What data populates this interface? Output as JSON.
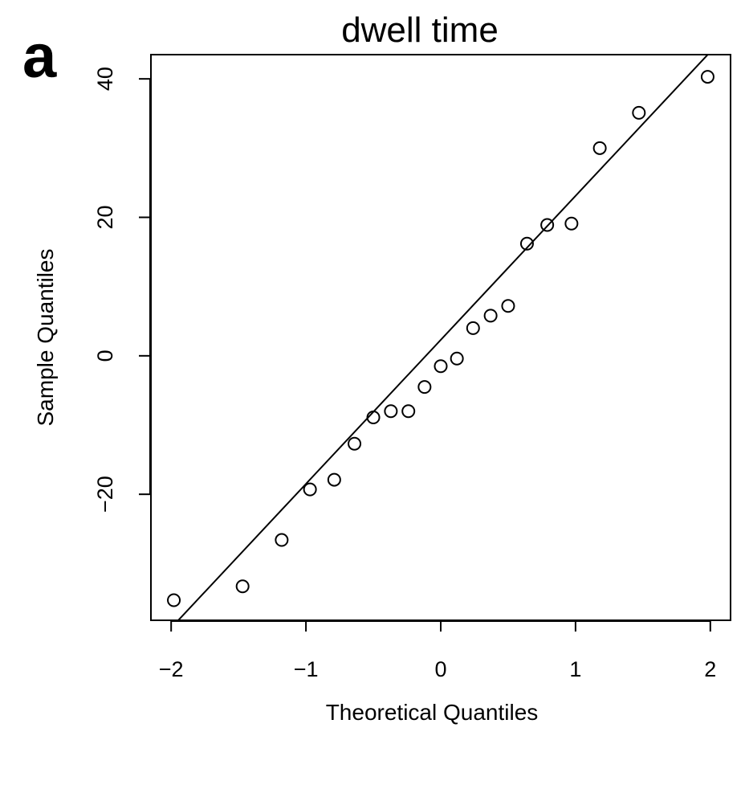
{
  "panel_label": "a",
  "chart_data": {
    "type": "scatter",
    "title": "dwell time",
    "xlabel": "Theoretical Quantiles",
    "ylabel": "Sample Quantiles",
    "xlim": [
      -2.15,
      2.15
    ],
    "ylim": [
      -38.2,
      43.5
    ],
    "x_ticks": [
      -2,
      -1,
      0,
      1,
      2
    ],
    "x_tick_labels": [
      "−2",
      "−1",
      "0",
      "1",
      "2"
    ],
    "y_ticks": [
      -20,
      0,
      20,
      40
    ],
    "y_tick_labels": [
      "−20",
      "0",
      "20",
      "40"
    ],
    "grid": false,
    "points": [
      {
        "x": -1.98,
        "y": -35.3
      },
      {
        "x": -1.47,
        "y": -33.3
      },
      {
        "x": -1.18,
        "y": -26.6
      },
      {
        "x": -0.97,
        "y": -19.3
      },
      {
        "x": -0.79,
        "y": -17.9
      },
      {
        "x": -0.64,
        "y": -12.7
      },
      {
        "x": -0.5,
        "y": -8.9
      },
      {
        "x": -0.37,
        "y": -8.0
      },
      {
        "x": -0.24,
        "y": -8.0
      },
      {
        "x": -0.12,
        "y": -4.5
      },
      {
        "x": 0.0,
        "y": -1.5
      },
      {
        "x": 0.12,
        "y": -0.4
      },
      {
        "x": 0.24,
        "y": 4.0
      },
      {
        "x": 0.37,
        "y": 5.8
      },
      {
        "x": 0.5,
        "y": 7.2
      },
      {
        "x": 0.64,
        "y": 16.2
      },
      {
        "x": 0.79,
        "y": 18.9
      },
      {
        "x": 0.97,
        "y": 19.1
      },
      {
        "x": 1.18,
        "y": 30.0
      },
      {
        "x": 1.47,
        "y": 35.1
      },
      {
        "x": 1.98,
        "y": 40.3
      }
    ],
    "reference_line": {
      "intercept": 2.3,
      "slope": 20.8
    }
  }
}
